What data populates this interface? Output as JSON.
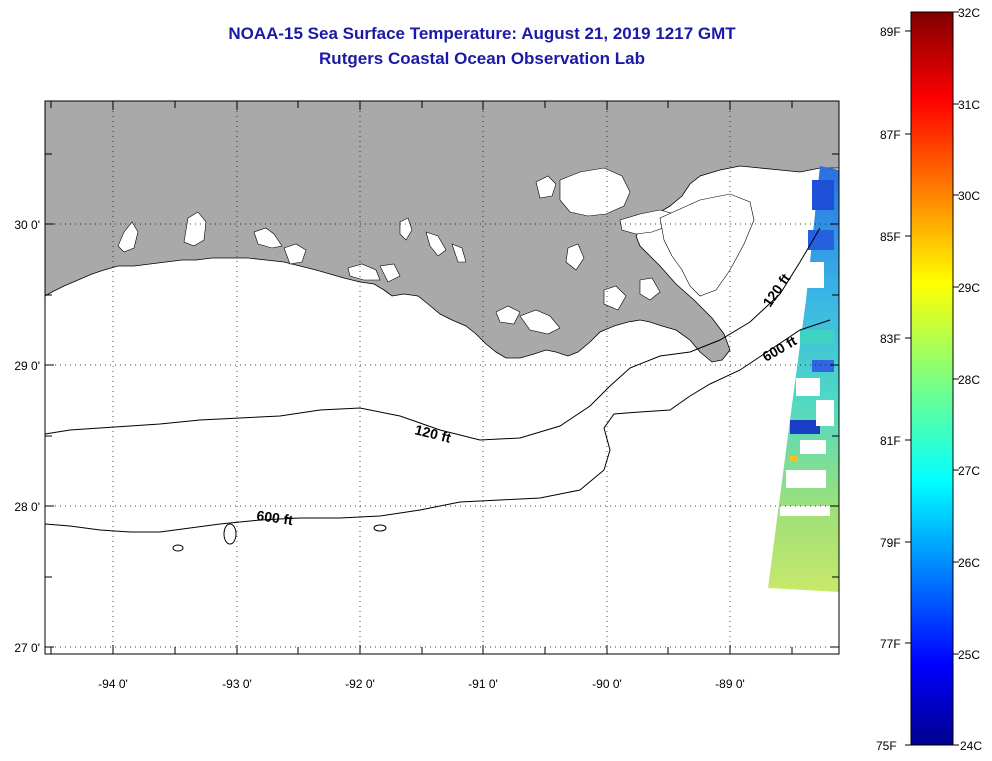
{
  "title": {
    "line1": "NOAA-15 Sea Surface Temperature:  August 21, 2019 1217 GMT",
    "line2": "Rutgers Coastal Ocean Observation Lab"
  },
  "axes": {
    "x_labels": [
      "-94 0'",
      "-93 0'",
      "-92 0'",
      "-91 0'",
      "-90 0'",
      "-89 0'"
    ],
    "y_labels": [
      "30 0'",
      "29 0'",
      "28 0'",
      "27 0'"
    ]
  },
  "contours": {
    "labels": [
      "120 ft",
      "600 ft",
      "120 ft",
      "600 ft"
    ]
  },
  "colorbar": {
    "fahrenheit": [
      "89F",
      "87F",
      "85F",
      "83F",
      "81F",
      "79F",
      "77F",
      "75F"
    ],
    "celsius": [
      "32C",
      "31C",
      "30C",
      "29C",
      "28C",
      "27C",
      "26C",
      "25C",
      "24C"
    ]
  },
  "colors": {
    "title": "#1a1aa6",
    "land": "#a9a9a9",
    "water": "#ffffff"
  }
}
